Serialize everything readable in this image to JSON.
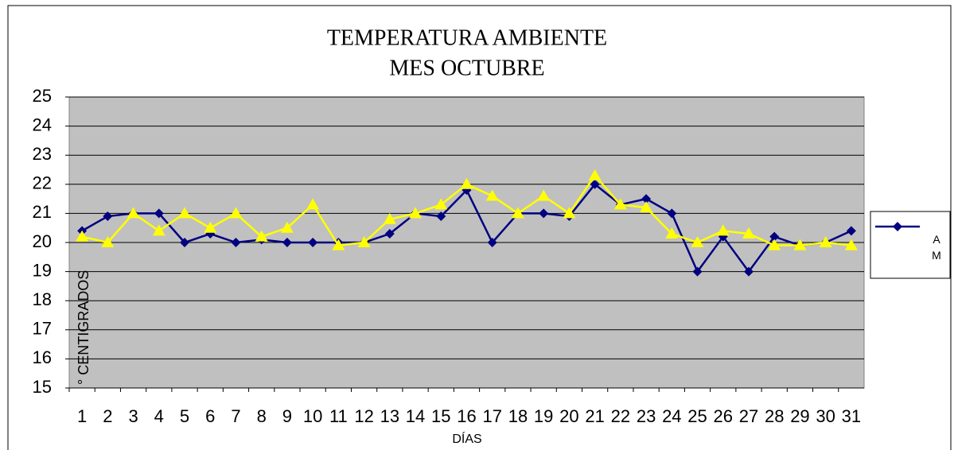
{
  "chart_data": {
    "type": "line",
    "title": [
      "TEMPERATURA AMBIENTE",
      "MES OCTUBRE"
    ],
    "x_label": "DÍAS",
    "y_label": "° CENTIGRADOS",
    "categories": [
      "1",
      "2",
      "3",
      "4",
      "5",
      "6",
      "7",
      "8",
      "9",
      "10",
      "11",
      "12",
      "13",
      "14",
      "15",
      "16",
      "17",
      "18",
      "19",
      "20",
      "21",
      "22",
      "23",
      "24",
      "25",
      "26",
      "27",
      "28",
      "29",
      "30",
      "31"
    ],
    "series": [
      {
        "name": "A M",
        "color": "#000080",
        "marker": "diamond",
        "values": [
          20.4,
          20.9,
          21.0,
          21.0,
          20.0,
          20.3,
          20.0,
          20.1,
          20.0,
          20.0,
          20.0,
          20.0,
          20.3,
          21.0,
          20.9,
          21.8,
          20.0,
          21.0,
          21.0,
          20.9,
          22.0,
          21.3,
          21.5,
          21.0,
          19.0,
          20.2,
          19.0,
          20.2,
          19.9,
          20.0,
          20.4
        ]
      },
      {
        "color": "#ffff00",
        "marker": "triangle",
        "values": [
          20.2,
          20.0,
          21.0,
          20.4,
          21.0,
          20.5,
          21.0,
          20.2,
          20.5,
          21.3,
          19.9,
          20.0,
          20.8,
          21.0,
          21.3,
          22.0,
          21.6,
          21.0,
          21.6,
          21.0,
          22.3,
          21.3,
          21.2,
          20.3,
          20.0,
          20.4,
          20.3,
          19.9,
          19.9,
          20.0,
          19.9
        ]
      }
    ],
    "ylim": [
      15,
      25
    ],
    "yticks": [
      15,
      16,
      17,
      18,
      19,
      20,
      21,
      22,
      23,
      24,
      25
    ],
    "grid": true,
    "legend": "right"
  }
}
